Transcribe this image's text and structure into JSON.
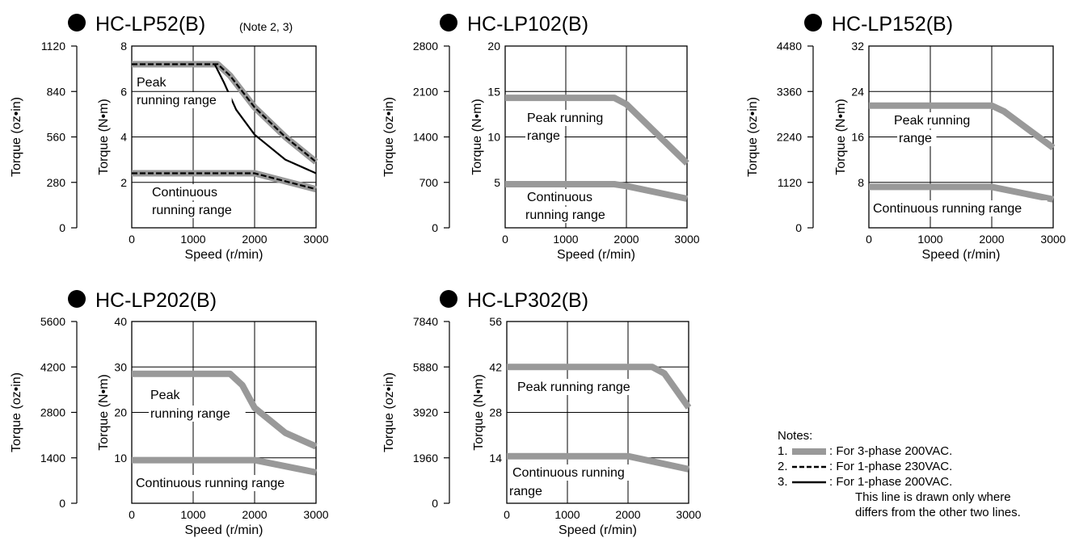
{
  "charts": [
    {
      "title": "HC-LP52(B)",
      "note": "(Note 2, 3)",
      "oz_ticks": [
        "1120",
        "840",
        "560",
        "280",
        "0"
      ],
      "nm_ticks": [
        "8",
        "6",
        "4",
        "2"
      ],
      "x_ticks": [
        "0",
        "1000",
        "2000",
        "3000"
      ],
      "xlabel": "Speed (r/min)",
      "ylabel_oz": "Torque (oz•in)",
      "ylabel_nm": "Torque (N•m)",
      "labels": [
        "Peak",
        "running range",
        "Continuous",
        "running range"
      ]
    },
    {
      "title": "HC-LP102(B)",
      "note": "",
      "oz_ticks": [
        "2800",
        "2100",
        "1400",
        "700",
        "0"
      ],
      "nm_ticks": [
        "20",
        "15",
        "10",
        "5"
      ],
      "x_ticks": [
        "0",
        "1000",
        "2000",
        "3000"
      ],
      "xlabel": "Speed (r/min)",
      "ylabel_oz": "Torque (oz•in)",
      "ylabel_nm": "Torque (N•m)",
      "labels": [
        "Peak running",
        "range",
        "Continuous",
        "running range"
      ]
    },
    {
      "title": "HC-LP152(B)",
      "note": "",
      "oz_ticks": [
        "4480",
        "3360",
        "2240",
        "1120",
        "0"
      ],
      "nm_ticks": [
        "32",
        "24",
        "16",
        "8"
      ],
      "x_ticks": [
        "0",
        "1000",
        "2000",
        "3000"
      ],
      "xlabel": "Speed (r/min)",
      "ylabel_oz": "Torque (oz•in)",
      "ylabel_nm": "Torque (N•m)",
      "labels": [
        "Peak running",
        "range",
        "Continuous running range"
      ]
    },
    {
      "title": "HC-LP202(B)",
      "note": "",
      "oz_ticks": [
        "5600",
        "4200",
        "2800",
        "1400",
        "0"
      ],
      "nm_ticks": [
        "40",
        "30",
        "20",
        "10"
      ],
      "x_ticks": [
        "0",
        "1000",
        "2000",
        "3000"
      ],
      "xlabel": "Speed (r/min)",
      "ylabel_oz": "Torque (oz•in)",
      "ylabel_nm": "Torque (N•m)",
      "labels": [
        "Peak",
        "running range",
        "Continuous running range"
      ]
    },
    {
      "title": "HC-LP302(B)",
      "note": "",
      "oz_ticks": [
        "7840",
        "5880",
        "3920",
        "1960",
        "0"
      ],
      "nm_ticks": [
        "56",
        "42",
        "28",
        "14"
      ],
      "x_ticks": [
        "0",
        "1000",
        "2000",
        "3000"
      ],
      "xlabel": "Speed (r/min)",
      "ylabel_oz": "Torque (oz•in)",
      "ylabel_nm": "Torque (N•m)",
      "labels": [
        "Peak running range",
        "Continuous running",
        "range"
      ]
    }
  ],
  "notes": {
    "heading": "Notes:",
    "items": [
      {
        "num": "1.",
        "text": ": For 3-phase 200VAC.",
        "style": "thick-gray"
      },
      {
        "num": "2.",
        "text": ": For 1-phase 230VAC.",
        "style": "dashed"
      },
      {
        "num": "3.",
        "text": ": For 1-phase 200VAC.",
        "style": "solid"
      }
    ],
    "extra": [
      "This line is drawn only where",
      "differs from the other two lines."
    ]
  },
  "colors": {
    "gray_band": "#999999",
    "axis": "#000000"
  },
  "chart_data": [
    {
      "type": "line",
      "title": "HC-LP52(B)",
      "xlabel": "Speed (r/min)",
      "ylabel": "Torque (N•m)",
      "ylabel_secondary": "Torque (oz•in)",
      "xlim": [
        0,
        3000
      ],
      "ylim": [
        0,
        8
      ],
      "ylim_secondary": [
        0,
        1120
      ],
      "grid": true,
      "series": [
        {
          "name": "Peak running range",
          "style": "thick-gray-dashed",
          "x": [
            0,
            1400,
            1600,
            2000,
            2500,
            3000
          ],
          "y": [
            7.2,
            7.2,
            6.7,
            5.3,
            4.0,
            2.9
          ]
        },
        {
          "name": "Peak running range",
          "style": "solid",
          "x": [
            1350,
            1500,
            1700,
            2000,
            2500,
            3000
          ],
          "y": [
            7.2,
            6.4,
            5.2,
            4.1,
            3.0,
            2.4
          ]
        },
        {
          "name": "Continuous running range",
          "style": "thick-gray-dashed",
          "x": [
            0,
            2000,
            3000
          ],
          "y": [
            2.4,
            2.4,
            1.7
          ]
        }
      ]
    },
    {
      "type": "line",
      "title": "HC-LP102(B)",
      "xlabel": "Speed (r/min)",
      "ylabel": "Torque (N•m)",
      "ylabel_secondary": "Torque (oz•in)",
      "xlim": [
        0,
        3000
      ],
      "ylim": [
        0,
        20
      ],
      "ylim_secondary": [
        0,
        2800
      ],
      "grid": true,
      "series": [
        {
          "name": "Peak running range",
          "style": "thick-gray",
          "x": [
            0,
            1800,
            2000,
            3000
          ],
          "y": [
            14.3,
            14.3,
            13.6,
            7.1
          ]
        },
        {
          "name": "Continuous running range",
          "style": "thick-gray",
          "x": [
            0,
            1800,
            2000,
            3000
          ],
          "y": [
            4.8,
            4.8,
            4.6,
            3.2
          ]
        }
      ]
    },
    {
      "type": "line",
      "title": "HC-LP152(B)",
      "xlabel": "Speed (r/min)",
      "ylabel": "Torque (N•m)",
      "ylabel_secondary": "Torque (oz•in)",
      "xlim": [
        0,
        3000
      ],
      "ylim": [
        0,
        32
      ],
      "ylim_secondary": [
        0,
        4480
      ],
      "grid": true,
      "series": [
        {
          "name": "Peak running range",
          "style": "thick-gray",
          "x": [
            0,
            2000,
            2200,
            3000
          ],
          "y": [
            21.5,
            21.5,
            20.5,
            14.1
          ]
        },
        {
          "name": "Continuous running range",
          "style": "thick-gray",
          "x": [
            0,
            2000,
            3000
          ],
          "y": [
            7.2,
            7.2,
            5.0
          ]
        }
      ]
    },
    {
      "type": "line",
      "title": "HC-LP202(B)",
      "xlabel": "Speed (r/min)",
      "ylabel": "Torque (N•m)",
      "ylabel_secondary": "Torque (oz•in)",
      "xlim": [
        0,
        3000
      ],
      "ylim": [
        0,
        40
      ],
      "ylim_secondary": [
        0,
        5600
      ],
      "grid": true,
      "series": [
        {
          "name": "Peak running range",
          "style": "thick-gray",
          "x": [
            0,
            1600,
            1800,
            2000,
            2500,
            3000
          ],
          "y": [
            28.5,
            28.5,
            26.0,
            21.0,
            15.5,
            12.5
          ]
        },
        {
          "name": "Continuous running range",
          "style": "thick-gray",
          "x": [
            0,
            2000,
            3000
          ],
          "y": [
            9.5,
            9.5,
            6.8
          ]
        }
      ]
    },
    {
      "type": "line",
      "title": "HC-LP302(B)",
      "xlabel": "Speed (r/min)",
      "ylabel": "Torque (N•m)",
      "ylabel_secondary": "Torque (oz•in)",
      "xlim": [
        0,
        3000
      ],
      "ylim": [
        0,
        56
      ],
      "ylim_secondary": [
        0,
        7840
      ],
      "grid": true,
      "series": [
        {
          "name": "Peak running range",
          "style": "thick-gray",
          "x": [
            0,
            2400,
            2600,
            3000
          ],
          "y": [
            42.0,
            42.0,
            40.0,
            29.5
          ]
        },
        {
          "name": "Continuous running range",
          "style": "thick-gray",
          "x": [
            0,
            2000,
            3000
          ],
          "y": [
            14.5,
            14.5,
            10.5
          ]
        }
      ]
    }
  ]
}
